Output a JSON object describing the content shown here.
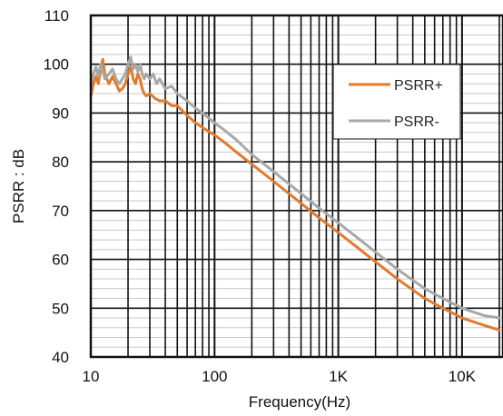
{
  "chart_data": {
    "type": "line",
    "title": "",
    "xlabel": "Frequency(Hz)",
    "ylabel": "PSRR  : dB",
    "x_scale": "log",
    "xlim": [
      10,
      20000
    ],
    "ylim": [
      40,
      110
    ],
    "x_ticks": [
      {
        "value": 10,
        "label": "10"
      },
      {
        "value": 100,
        "label": "100"
      },
      {
        "value": 1000,
        "label": "1K"
      },
      {
        "value": 10000,
        "label": "10K"
      }
    ],
    "y_ticks": [
      {
        "value": 40,
        "label": "40"
      },
      {
        "value": 50,
        "label": "50"
      },
      {
        "value": 60,
        "label": "60"
      },
      {
        "value": 70,
        "label": "70"
      },
      {
        "value": 80,
        "label": "80"
      },
      {
        "value": 90,
        "label": "90"
      },
      {
        "value": 100,
        "label": "100"
      },
      {
        "value": 110,
        "label": "110"
      }
    ],
    "grid": true,
    "legend_position": "top-right",
    "series": [
      {
        "name": "PSRR+",
        "color": "#E07B2F",
        "points": [
          [
            10,
            93.5
          ],
          [
            10.5,
            96
          ],
          [
            11,
            97.5
          ],
          [
            11.5,
            96
          ],
          [
            12,
            99
          ],
          [
            12.5,
            101
          ],
          [
            13,
            98
          ],
          [
            14,
            96
          ],
          [
            15,
            97.5
          ],
          [
            16,
            96
          ],
          [
            17,
            94.5
          ],
          [
            18,
            95
          ],
          [
            19,
            96
          ],
          [
            20,
            98
          ],
          [
            21,
            99.5
          ],
          [
            22,
            97
          ],
          [
            23,
            96
          ],
          [
            24,
            98
          ],
          [
            25,
            97
          ],
          [
            26,
            95
          ],
          [
            27,
            94
          ],
          [
            28,
            93.5
          ],
          [
            30,
            94
          ],
          [
            33,
            93
          ],
          [
            36,
            92.5
          ],
          [
            40,
            92.5
          ],
          [
            45,
            91.5
          ],
          [
            50,
            91.5
          ],
          [
            60,
            89.5
          ],
          [
            70,
            88
          ],
          [
            80,
            87
          ],
          [
            100,
            85.5
          ],
          [
            120,
            84
          ],
          [
            150,
            82
          ],
          [
            200,
            79.5
          ],
          [
            300,
            76
          ],
          [
            500,
            71.5
          ],
          [
            700,
            68.5
          ],
          [
            1000,
            65.5
          ],
          [
            1500,
            62
          ],
          [
            2000,
            59.5
          ],
          [
            3000,
            56
          ],
          [
            5000,
            52
          ],
          [
            7000,
            50
          ],
          [
            10000,
            48
          ],
          [
            15000,
            46.5
          ],
          [
            20000,
            45.5
          ]
        ]
      },
      {
        "name": "PSRR-",
        "color": "#A8A8A8",
        "points": [
          [
            10,
            96
          ],
          [
            10.5,
            98
          ],
          [
            11,
            99.5
          ],
          [
            11.5,
            97.5
          ],
          [
            12,
            100
          ],
          [
            12.5,
            98.5
          ],
          [
            13,
            97
          ],
          [
            14,
            98
          ],
          [
            15,
            99
          ],
          [
            16,
            97
          ],
          [
            17,
            96
          ],
          [
            18,
            97
          ],
          [
            19,
            98
          ],
          [
            20,
            100
          ],
          [
            21,
            101.5
          ],
          [
            22,
            99
          ],
          [
            23,
            100
          ],
          [
            24,
            98.5
          ],
          [
            25,
            100
          ],
          [
            26,
            98
          ],
          [
            27,
            97
          ],
          [
            28,
            98
          ],
          [
            30,
            97
          ],
          [
            32,
            98
          ],
          [
            34,
            96
          ],
          [
            36,
            97
          ],
          [
            40,
            95
          ],
          [
            45,
            95.5
          ],
          [
            50,
            94
          ],
          [
            60,
            92.5
          ],
          [
            70,
            91
          ],
          [
            80,
            90
          ],
          [
            100,
            88
          ],
          [
            120,
            86.5
          ],
          [
            150,
            84.5
          ],
          [
            200,
            81.5
          ],
          [
            300,
            78
          ],
          [
            500,
            73.5
          ],
          [
            700,
            70.5
          ],
          [
            1000,
            67.5
          ],
          [
            1500,
            64
          ],
          [
            2000,
            61.5
          ],
          [
            3000,
            58
          ],
          [
            5000,
            54
          ],
          [
            7000,
            52
          ],
          [
            10000,
            50
          ],
          [
            15000,
            48.5
          ],
          [
            20000,
            48
          ]
        ]
      }
    ]
  }
}
